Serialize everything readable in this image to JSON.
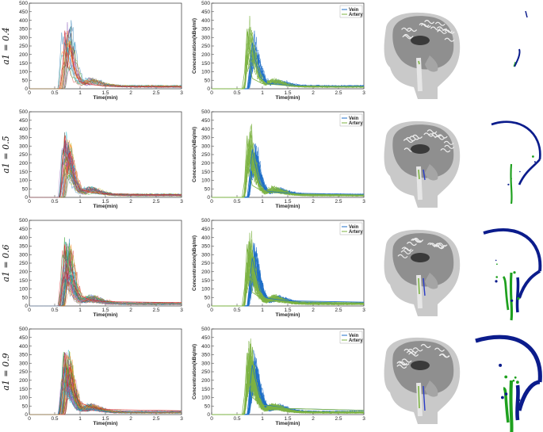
{
  "figure": {
    "row_labels": [
      "a1 = 0.4",
      "a1 = 0.5",
      "a1 = 0.6",
      "a1 = 0.9"
    ],
    "colors": {
      "vein": "#1f6fc8",
      "artery": "#7cb342",
      "vessel_vein": "#0b1c8c",
      "vessel_artery": "#1ea01e",
      "rainbow": [
        "#1f77b4",
        "#ff7f0e",
        "#2ca02c",
        "#d62728",
        "#9467bd",
        "#8c564b",
        "#e377c2",
        "#17becf",
        "#bcbd22",
        "#555555"
      ]
    }
  },
  "chart_data": [
    {
      "type": "line",
      "panel": "row1-all-curves",
      "xlabel": "Time(min)",
      "ylabel": "",
      "xlim": [
        0,
        3
      ],
      "ylim": [
        0,
        500
      ],
      "xticks": [
        0,
        0.5,
        1,
        1.5,
        2,
        2.5,
        3
      ],
      "yticks": [
        0,
        50,
        100,
        150,
        200,
        250,
        300,
        350,
        400,
        450,
        500
      ],
      "series": [
        {
          "values": [
            [
              0.6,
              0
            ],
            [
              0.65,
              90
            ],
            [
              0.7,
              340
            ],
            [
              0.75,
              120
            ],
            [
              0.8,
              260
            ],
            [
              0.9,
              90
            ],
            [
              1.0,
              40
            ],
            [
              1.2,
              25
            ],
            [
              1.5,
              15
            ],
            [
              3,
              10
            ]
          ]
        }
      ]
    },
    {
      "type": "line",
      "panel": "row1-vein-artery",
      "xlabel": "Time(min)",
      "ylabel": "Concentration(kBq/ml)",
      "xlim": [
        0,
        3
      ],
      "ylim": [
        0,
        500
      ],
      "xticks": [
        0,
        0.5,
        1,
        1.5,
        2,
        2.5,
        3
      ],
      "yticks": [
        0,
        50,
        100,
        150,
        200,
        250,
        300,
        350,
        400,
        450,
        500
      ],
      "legend": "top-right",
      "series": [
        {
          "name": "Vein",
          "values": [
            [
              0.7,
              0
            ],
            [
              0.75,
              120
            ],
            [
              0.8,
              270
            ],
            [
              0.85,
              180
            ],
            [
              0.95,
              70
            ],
            [
              1.1,
              30
            ],
            [
              1.5,
              20
            ],
            [
              3,
              15
            ]
          ]
        },
        {
          "name": "Artery",
          "values": [
            [
              0.6,
              0
            ],
            [
              0.65,
              100
            ],
            [
              0.7,
              350
            ],
            [
              0.72,
              200
            ],
            [
              0.8,
              60
            ],
            [
              1.0,
              30
            ],
            [
              1.5,
              18
            ],
            [
              3,
              12
            ]
          ]
        }
      ]
    },
    {
      "type": "line",
      "panel": "row2-all-curves",
      "xlabel": "Time(min)",
      "ylabel": "",
      "xlim": [
        0,
        3
      ],
      "ylim": [
        0,
        500
      ],
      "xticks": [
        0,
        0.5,
        1,
        1.5,
        2,
        2.5,
        3
      ],
      "yticks": [
        0,
        50,
        100,
        150,
        200,
        250,
        300,
        350,
        400,
        450,
        500
      ],
      "series": [
        {
          "values": [
            [
              0.6,
              0
            ],
            [
              0.65,
              100
            ],
            [
              0.7,
              350
            ],
            [
              0.75,
              130
            ],
            [
              0.8,
              270
            ],
            [
              0.9,
              100
            ],
            [
              1.0,
              50
            ],
            [
              1.2,
              30
            ],
            [
              1.5,
              20
            ],
            [
              3,
              15
            ]
          ]
        }
      ]
    },
    {
      "type": "line",
      "panel": "row2-vein-artery",
      "xlabel": "Time(min)",
      "ylabel": "Concentration(kBq/ml)",
      "xlim": [
        0,
        3
      ],
      "ylim": [
        0,
        500
      ],
      "xticks": [
        0,
        0.5,
        1,
        1.5,
        2,
        2.5,
        3
      ],
      "yticks": [
        0,
        50,
        100,
        150,
        200,
        250,
        300,
        350,
        400,
        450,
        500
      ],
      "legend": "top-right",
      "series": [
        {
          "name": "Vein",
          "values": [
            [
              0.7,
              0
            ],
            [
              0.75,
              130
            ],
            [
              0.8,
              280
            ],
            [
              0.85,
              200
            ],
            [
              0.95,
              80
            ],
            [
              1.1,
              35
            ],
            [
              1.5,
              25
            ],
            [
              3,
              18
            ]
          ]
        },
        {
          "name": "Artery",
          "values": [
            [
              0.6,
              0
            ],
            [
              0.65,
              100
            ],
            [
              0.7,
              360
            ],
            [
              0.72,
              200
            ],
            [
              0.8,
              70
            ],
            [
              1.0,
              35
            ],
            [
              1.5,
              20
            ],
            [
              3,
              14
            ]
          ]
        }
      ]
    },
    {
      "type": "line",
      "panel": "row3-all-curves",
      "xlabel": "Time(min)",
      "ylabel": "",
      "xlim": [
        0,
        3
      ],
      "ylim": [
        0,
        500
      ],
      "xticks": [
        0,
        0.5,
        1,
        1.5,
        2,
        2.5,
        3
      ],
      "yticks": [
        0,
        50,
        100,
        150,
        200,
        250,
        300,
        350,
        400,
        450,
        500
      ],
      "series": [
        {
          "values": [
            [
              0.6,
              0
            ],
            [
              0.65,
              100
            ],
            [
              0.7,
              360
            ],
            [
              0.75,
              150
            ],
            [
              0.8,
              270
            ],
            [
              0.9,
              110
            ],
            [
              1.0,
              60
            ],
            [
              1.2,
              35
            ],
            [
              1.5,
              25
            ],
            [
              3,
              20
            ]
          ]
        }
      ]
    },
    {
      "type": "line",
      "panel": "row3-vein-artery",
      "xlabel": "Time(min)",
      "ylabel": "Concentration(kBq/ml)",
      "xlim": [
        0,
        3
      ],
      "ylim": [
        0,
        500
      ],
      "xticks": [
        0,
        0.5,
        1,
        1.5,
        2,
        2.5,
        3
      ],
      "yticks": [
        0,
        50,
        100,
        150,
        200,
        250,
        300,
        350,
        400,
        450,
        500
      ],
      "legend": "top-right",
      "series": [
        {
          "name": "Vein",
          "values": [
            [
              0.7,
              0
            ],
            [
              0.75,
              140
            ],
            [
              0.8,
              280
            ],
            [
              0.85,
              210
            ],
            [
              0.95,
              90
            ],
            [
              1.1,
              45
            ],
            [
              1.5,
              30
            ],
            [
              3,
              22
            ]
          ]
        },
        {
          "name": "Artery",
          "values": [
            [
              0.6,
              0
            ],
            [
              0.65,
              110
            ],
            [
              0.7,
              360
            ],
            [
              0.72,
              220
            ],
            [
              0.8,
              80
            ],
            [
              1.0,
              40
            ],
            [
              1.5,
              25
            ],
            [
              3,
              18
            ]
          ]
        }
      ]
    },
    {
      "type": "line",
      "panel": "row4-all-curves",
      "xlabel": "Time(min)",
      "ylabel": "",
      "xlim": [
        0,
        3
      ],
      "ylim": [
        0,
        500
      ],
      "xticks": [
        0,
        0.5,
        1,
        1.5,
        2,
        2.5,
        3
      ],
      "yticks": [
        0,
        50,
        100,
        150,
        200,
        250,
        300,
        350,
        400,
        450,
        500
      ],
      "series": [
        {
          "values": [
            [
              0.6,
              0
            ],
            [
              0.65,
              110
            ],
            [
              0.7,
              360
            ],
            [
              0.75,
              160
            ],
            [
              0.8,
              280
            ],
            [
              0.9,
              120
            ],
            [
              1.0,
              70
            ],
            [
              1.2,
              45
            ],
            [
              1.5,
              30
            ],
            [
              3,
              22
            ]
          ]
        }
      ]
    },
    {
      "type": "line",
      "panel": "row4-vein-artery",
      "xlabel": "Time(min)",
      "ylabel": "Concentration(kBq/ml)",
      "xlim": [
        0,
        3
      ],
      "ylim": [
        0,
        500
      ],
      "xticks": [
        0,
        0.5,
        1,
        1.5,
        2,
        2.5,
        3
      ],
      "yticks": [
        0,
        50,
        100,
        150,
        200,
        250,
        300,
        350,
        400,
        450,
        500
      ],
      "legend": "top-right",
      "series": [
        {
          "name": "Vein",
          "values": [
            [
              0.7,
              0
            ],
            [
              0.75,
              150
            ],
            [
              0.8,
              290
            ],
            [
              0.85,
              220
            ],
            [
              0.95,
              100
            ],
            [
              1.1,
              55
            ],
            [
              1.5,
              35
            ],
            [
              3,
              25
            ]
          ]
        },
        {
          "name": "Artery",
          "values": [
            [
              0.6,
              0
            ],
            [
              0.65,
              120
            ],
            [
              0.7,
              360
            ],
            [
              0.72,
              240
            ],
            [
              0.8,
              100
            ],
            [
              1.0,
              55
            ],
            [
              1.5,
              35
            ],
            [
              3,
              25
            ]
          ]
        }
      ]
    }
  ]
}
